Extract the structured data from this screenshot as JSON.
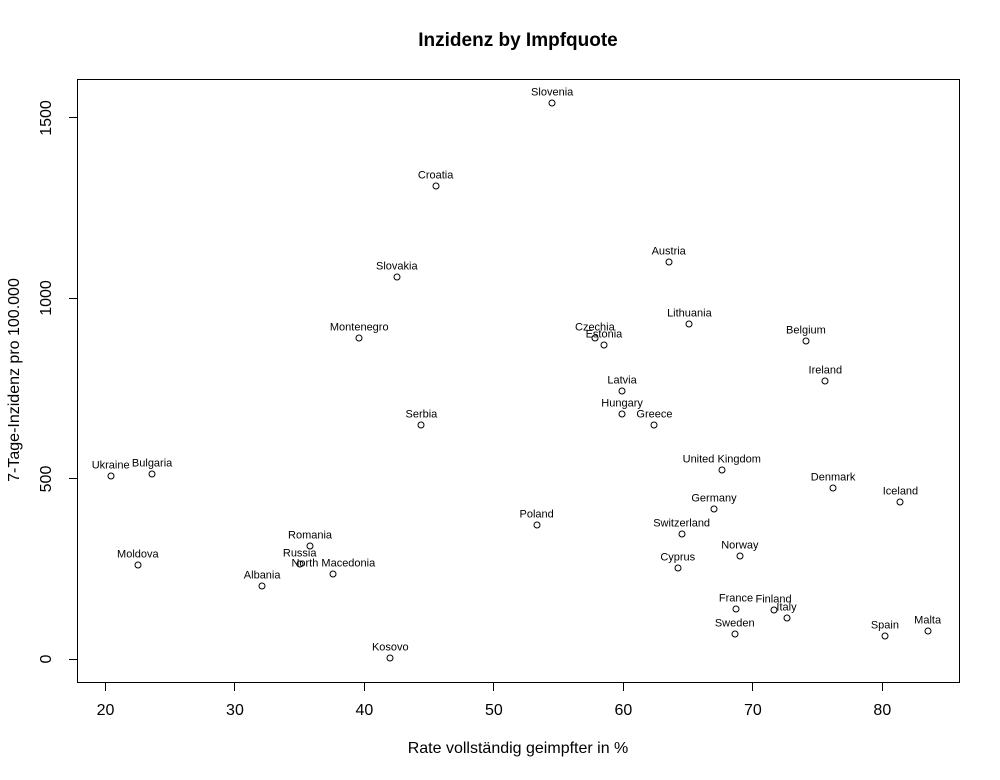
{
  "chart_data": {
    "type": "scatter",
    "title": "Inzidenz by Impfquote",
    "xlabel": "Rate vollständig geimpfter in %",
    "ylabel": "7-Tage-Inzidenz pro 100.000",
    "x_ticks": [
      20,
      30,
      40,
      50,
      60,
      70,
      80
    ],
    "y_ticks": [
      0,
      500,
      1000,
      1500
    ],
    "xlim": [
      17.8,
      86.0
    ],
    "ylim": [
      -66,
      1608
    ],
    "grid": false,
    "legend": "none",
    "marker": "open-circle",
    "colors": {
      "foreground": "#000000",
      "background": "#ffffff"
    },
    "points": [
      {
        "country": "Ukraine",
        "x": 20.4,
        "y": 507
      },
      {
        "country": "Moldova",
        "x": 22.5,
        "y": 262
      },
      {
        "country": "Bulgaria",
        "x": 23.6,
        "y": 514
      },
      {
        "country": "Albania",
        "x": 32.1,
        "y": 202
      },
      {
        "country": "Russia",
        "x": 35.0,
        "y": 263
      },
      {
        "country": "Romania",
        "x": 35.8,
        "y": 314
      },
      {
        "country": "North Macedonia",
        "x": 37.6,
        "y": 235
      },
      {
        "country": "Montenegro",
        "x": 39.6,
        "y": 890
      },
      {
        "country": "Kosovo",
        "x": 42.0,
        "y": 2
      },
      {
        "country": "Slovakia",
        "x": 42.5,
        "y": 1058
      },
      {
        "country": "Serbia",
        "x": 44.4,
        "y": 650
      },
      {
        "country": "Croatia",
        "x": 45.5,
        "y": 1312
      },
      {
        "country": "Poland",
        "x": 53.3,
        "y": 373
      },
      {
        "country": "Slovenia",
        "x": 54.5,
        "y": 1542
      },
      {
        "country": "Czechia",
        "x": 57.8,
        "y": 889
      },
      {
        "country": "Estonia",
        "x": 58.5,
        "y": 870
      },
      {
        "country": "Latvia",
        "x": 59.9,
        "y": 743
      },
      {
        "country": "Hungary",
        "x": 59.9,
        "y": 680
      },
      {
        "country": "Greece",
        "x": 62.4,
        "y": 650
      },
      {
        "country": "Austria",
        "x": 63.5,
        "y": 1100
      },
      {
        "country": "Cyprus",
        "x": 64.2,
        "y": 254
      },
      {
        "country": "Switzerland",
        "x": 64.5,
        "y": 346
      },
      {
        "country": "Lithuania",
        "x": 65.1,
        "y": 929
      },
      {
        "country": "Germany",
        "x": 67.0,
        "y": 415
      },
      {
        "country": "United Kingdom",
        "x": 67.6,
        "y": 523
      },
      {
        "country": "Sweden",
        "x": 68.6,
        "y": 71
      },
      {
        "country": "France",
        "x": 68.7,
        "y": 138
      },
      {
        "country": "Norway",
        "x": 69.0,
        "y": 286
      },
      {
        "country": "Finland",
        "x": 71.6,
        "y": 136
      },
      {
        "country": "Italy",
        "x": 72.6,
        "y": 114
      },
      {
        "country": "Belgium",
        "x": 74.1,
        "y": 883
      },
      {
        "country": "Ireland",
        "x": 75.6,
        "y": 771
      },
      {
        "country": "Denmark",
        "x": 76.2,
        "y": 475
      },
      {
        "country": "Spain",
        "x": 80.2,
        "y": 64
      },
      {
        "country": "Iceland",
        "x": 81.4,
        "y": 437
      },
      {
        "country": "Malta",
        "x": 83.5,
        "y": 78
      }
    ]
  }
}
